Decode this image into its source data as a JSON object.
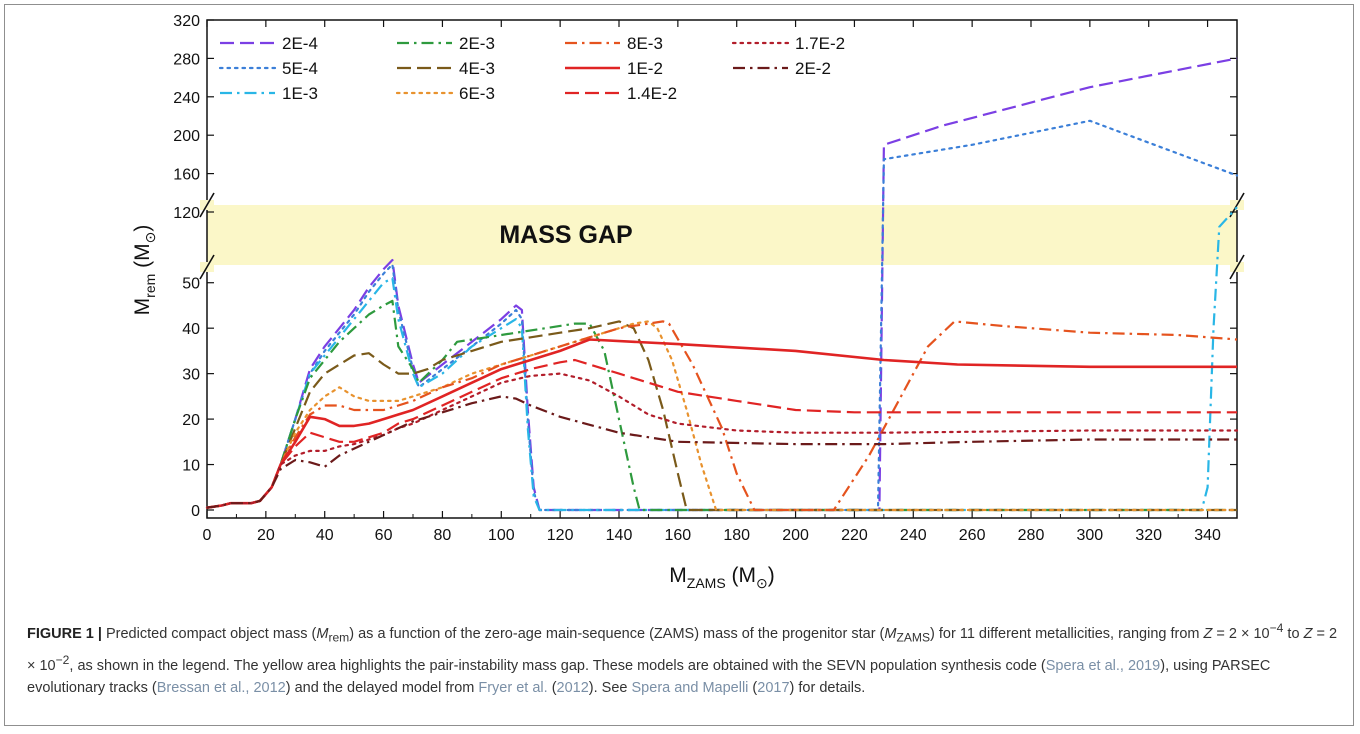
{
  "chart_data": {
    "type": "line",
    "xlabel_main": "M",
    "xlabel_sub": "ZAMS",
    "xlabel_unit": "(M",
    "xlabel_close": ")",
    "ylabel_main": "M",
    "ylabel_sub": "rem",
    "ylabel_unit": "(M",
    "ylabel_close": ")",
    "sun_symbol": "⊙",
    "gap_label": "MASS GAP",
    "xlim": [
      0,
      350
    ],
    "x_ticks": [
      "0",
      "20",
      "40",
      "60",
      "80",
      "100",
      "120",
      "140",
      "160",
      "180",
      "200",
      "220",
      "240",
      "260",
      "280",
      "300",
      "320",
      "340"
    ],
    "y_ticks_lower": [
      "0",
      "10",
      "20",
      "30",
      "40",
      "50"
    ],
    "y_ticks_upper": [
      "120",
      "160",
      "200",
      "240",
      "280",
      "320"
    ],
    "y_axis_break": true,
    "mass_gap_color": "#fbf7c8",
    "legend_placement": "top-left",
    "series": [
      {
        "name": "2E-4",
        "color": "#7b3fe4",
        "dash": "dash",
        "x": [
          0,
          5,
          8,
          15,
          18,
          22,
          25,
          30,
          35,
          40,
          45,
          50,
          55,
          60,
          63,
          65,
          70,
          72,
          80,
          90,
          100,
          105,
          107,
          109,
          111,
          113,
          130,
          200,
          227.5,
          228.5,
          230,
          250,
          300,
          350
        ],
        "y": [
          0.5,
          1,
          1.5,
          1.5,
          2,
          5,
          10,
          20,
          31,
          36,
          40,
          44,
          49,
          53,
          55,
          45,
          32,
          28,
          32,
          37,
          42,
          45,
          44,
          22,
          5,
          0,
          0,
          0,
          0,
          0,
          190,
          210,
          250,
          280
        ]
      },
      {
        "name": "5E-4",
        "color": "#3b7fd8",
        "dash": "dot",
        "x": [
          0,
          5,
          8,
          15,
          18,
          22,
          25,
          30,
          35,
          40,
          45,
          50,
          55,
          60,
          63,
          65,
          70,
          72,
          80,
          90,
          100,
          105,
          107,
          109,
          111,
          113,
          130,
          200,
          227,
          228,
          230,
          260,
          300,
          350
        ],
        "y": [
          0.5,
          1,
          1.5,
          1.5,
          2,
          5,
          10,
          20,
          30,
          35,
          39,
          43,
          48,
          52,
          54,
          44,
          31,
          27,
          31,
          36,
          41,
          44,
          42,
          20,
          4,
          0,
          0,
          0,
          0,
          0,
          175,
          190,
          215,
          158
        ]
      },
      {
        "name": "1E-3",
        "color": "#29b6e6",
        "dash": "dashdot",
        "x": [
          0,
          5,
          8,
          15,
          18,
          22,
          25,
          30,
          35,
          40,
          45,
          50,
          55,
          60,
          63,
          65,
          70,
          72,
          80,
          90,
          100,
          105,
          107,
          109,
          111,
          113,
          200,
          300,
          338,
          340,
          342,
          344,
          350
        ],
        "y": [
          0.5,
          1,
          1.5,
          1.5,
          2,
          5,
          10,
          20,
          30,
          34,
          38,
          42,
          46,
          50,
          51,
          42,
          30,
          27,
          30,
          36,
          40,
          42,
          40,
          18,
          3,
          0,
          0,
          0,
          0,
          5,
          40,
          100,
          125
        ]
      },
      {
        "name": "2E-3",
        "color": "#2e9a3e",
        "dash": "dashdot",
        "x": [
          0,
          5,
          8,
          15,
          18,
          22,
          25,
          30,
          35,
          40,
          45,
          50,
          55,
          60,
          63,
          65,
          70,
          72,
          80,
          85,
          95,
          105,
          115,
          125,
          130,
          135,
          140,
          145,
          147,
          150,
          200,
          350
        ],
        "y": [
          0.5,
          1,
          1.5,
          1.5,
          2,
          5,
          10,
          20,
          29,
          33,
          37,
          40,
          43,
          45,
          46,
          36,
          31,
          28,
          33,
          37,
          38,
          39,
          40,
          41,
          41,
          35,
          20,
          5,
          0,
          0,
          0,
          0
        ]
      },
      {
        "name": "4E-3",
        "color": "#7a5a1a",
        "dash": "dash",
        "x": [
          0,
          5,
          8,
          15,
          18,
          22,
          25,
          30,
          35,
          40,
          45,
          50,
          55,
          60,
          65,
          70,
          75,
          80,
          90,
          100,
          110,
          120,
          130,
          140,
          145,
          150,
          155,
          160,
          163,
          200,
          350
        ],
        "y": [
          0.5,
          1,
          1.5,
          1.5,
          2,
          5,
          10,
          18,
          26,
          30,
          32,
          34,
          34.5,
          32,
          30,
          30,
          31,
          33,
          35,
          37,
          38,
          39,
          40,
          41.5,
          40,
          33,
          22,
          8,
          0,
          0,
          0
        ]
      },
      {
        "name": "6E-3",
        "color": "#e8922e",
        "dash": "dot",
        "x": [
          0,
          5,
          8,
          15,
          18,
          22,
          25,
          30,
          35,
          40,
          45,
          50,
          55,
          60,
          65,
          70,
          80,
          90,
          100,
          110,
          120,
          130,
          140,
          145,
          150,
          153,
          158,
          163,
          168,
          173,
          200,
          350
        ],
        "y": [
          0.5,
          1,
          1.5,
          1.5,
          2,
          5,
          10,
          17,
          22,
          25,
          27,
          25,
          24,
          24,
          24,
          25,
          27,
          30,
          32,
          34,
          36,
          38,
          40,
          41,
          41.5,
          40,
          33,
          22,
          10,
          0,
          0,
          0
        ]
      },
      {
        "name": "8E-3",
        "color": "#e5531e",
        "dash": "dashdot",
        "x": [
          0,
          5,
          8,
          15,
          18,
          22,
          25,
          30,
          35,
          40,
          45,
          50,
          55,
          60,
          65,
          70,
          80,
          90,
          100,
          110,
          120,
          130,
          140,
          150,
          155,
          157,
          165,
          175,
          180,
          186,
          200,
          213,
          225,
          235,
          245,
          254,
          270,
          300,
          330,
          350
        ],
        "y": [
          0.5,
          1,
          1.5,
          1.5,
          2,
          5,
          10,
          16,
          21,
          23,
          23,
          22,
          22,
          22,
          23,
          24,
          27,
          29,
          32,
          34,
          36,
          38,
          40,
          41,
          41.5,
          41,
          32,
          18,
          8,
          0,
          0,
          0,
          12,
          24,
          36,
          41.5,
          40.5,
          39,
          38.5,
          37.5
        ]
      },
      {
        "name": "1E-2",
        "color": "#e02424",
        "dash": "solid",
        "x": [
          0,
          5,
          8,
          15,
          18,
          22,
          25,
          30,
          35,
          40,
          45,
          50,
          55,
          60,
          65,
          70,
          80,
          90,
          100,
          110,
          120,
          130,
          160,
          200,
          230,
          255,
          300,
          350
        ],
        "y": [
          0.5,
          1,
          1.5,
          1.5,
          2,
          5,
          10,
          15,
          20.5,
          20,
          18.5,
          18.5,
          19,
          20,
          21,
          22,
          25,
          28,
          31,
          33,
          35,
          37.5,
          36.5,
          35,
          33,
          32,
          31.5,
          31.5
        ]
      },
      {
        "name": "1.4E-2",
        "color": "#e02424",
        "dash": "dash",
        "x": [
          0,
          5,
          8,
          15,
          18,
          22,
          25,
          30,
          35,
          40,
          45,
          50,
          55,
          60,
          65,
          70,
          80,
          90,
          100,
          110,
          120,
          125,
          130,
          140,
          160,
          180,
          200,
          220,
          260,
          300,
          350
        ],
        "y": [
          0.5,
          1,
          1.5,
          1.5,
          2,
          5,
          10,
          14,
          17,
          16,
          15,
          15,
          16,
          17,
          19,
          20,
          23,
          26,
          29,
          31,
          32.5,
          33,
          32,
          30,
          26,
          24,
          22,
          21.5,
          21.5,
          21.5,
          21.5
        ]
      },
      {
        "name": "1.7E-2",
        "color": "#b21d2a",
        "dash": "dot",
        "x": [
          0,
          5,
          8,
          15,
          18,
          22,
          25,
          30,
          35,
          40,
          45,
          50,
          55,
          60,
          65,
          70,
          80,
          90,
          100,
          110,
          120,
          130,
          140,
          150,
          160,
          180,
          200,
          230,
          300,
          350
        ],
        "y": [
          0.5,
          1,
          1.5,
          1.5,
          2,
          5,
          10,
          12,
          13,
          13,
          14,
          14.5,
          15.5,
          16.5,
          18,
          19,
          22,
          25,
          28,
          29.5,
          30,
          28.5,
          25,
          21,
          19,
          17.5,
          17,
          17,
          17.5,
          17.5
        ]
      },
      {
        "name": "2E-2",
        "color": "#6b1a1a",
        "dash": "dashdot",
        "x": [
          0,
          5,
          8,
          15,
          18,
          22,
          25,
          30,
          35,
          40,
          45,
          50,
          55,
          60,
          65,
          70,
          80,
          90,
          100,
          105,
          110,
          120,
          140,
          160,
          200,
          230,
          260,
          300,
          350
        ],
        "y": [
          0.5,
          1,
          1.5,
          1.5,
          2,
          5,
          9,
          11,
          10.5,
          9.5,
          12,
          13.5,
          15,
          16.5,
          18,
          19.5,
          21.5,
          23.5,
          25,
          24.5,
          23,
          20.5,
          17,
          15,
          14.5,
          14.5,
          15,
          15.5,
          15.5
        ]
      }
    ]
  },
  "caption": {
    "label": "FIGURE 1 |",
    "p1": " Predicted compact object mass (",
    "m_rem": "M",
    "m_rem_sub": "rem",
    "p2": ") as a function of the zero-age main-sequence (ZAMS) mass of the progenitor star (",
    "m_zams": "M",
    "m_zams_sub": "ZAMS",
    "p3": ") for 11 different metallicities, ranging from ",
    "z1": "Z",
    "eq1": " = 2 × 10",
    "exp1": "−4",
    "to": " to ",
    "z2": "Z",
    "eq2": " = 2 × 10",
    "exp2": "−2",
    "p4": ", as shown in the legend. The yellow area highlights the pair-instability mass gap. These models are obtained with the SEVN population synthesis code (",
    "ref1": "Spera et al., 2019",
    "p5": "), using PARSEC evolutionary tracks (",
    "ref2": "Bressan et al., 2012",
    "p6": ") and the delayed model from ",
    "ref3": "Fryer et al.",
    "p7": " (",
    "ref4": "2012",
    "p8": "). See ",
    "ref5": "Spera and Mapelli",
    "p9": " (",
    "ref6": "2017",
    "p10": ") for details."
  }
}
